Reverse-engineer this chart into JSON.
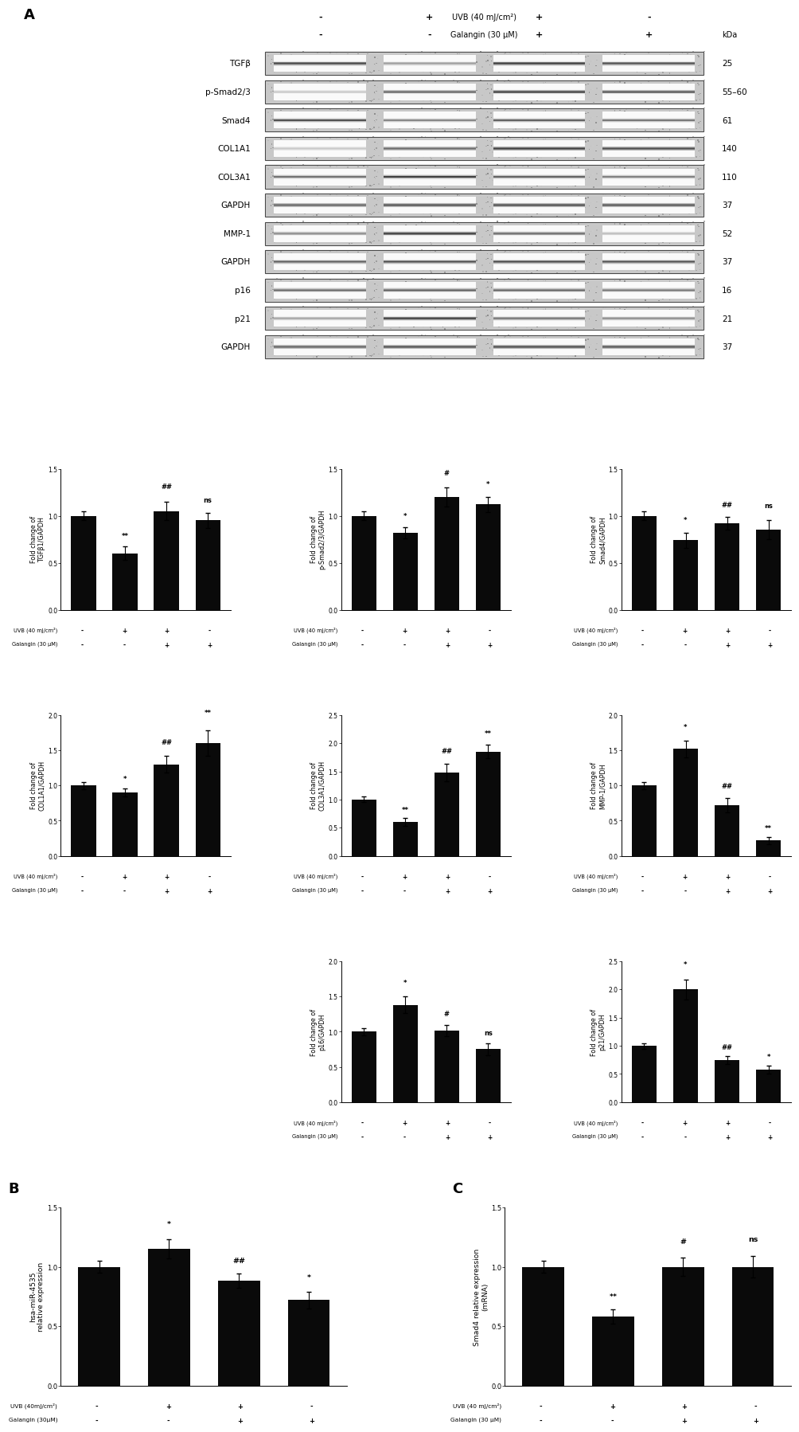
{
  "panel_A_label": "A",
  "panel_B_label": "B",
  "panel_C_label": "C",
  "uvb_label": "UVB (40 mJ/cm²)",
  "galangin_label": "Galangin (30 μM)",
  "uvb_label_short": "UVB (40mJ/cm²)",
  "galangin_label_short": "Galangin (30μM)",
  "uvb_label_space": "UVB (40 mJ/cm²)",
  "galangin_label_space": "Galangin (30 μM)",
  "conditions": [
    "-",
    "+",
    "+",
    "-"
  ],
  "galangin_conds": [
    "-",
    "-",
    "+",
    "+"
  ],
  "blot_info": [
    {
      "pattern": "TGFb",
      "label": "TGFβ",
      "kda": "25",
      "intensities": [
        0.85,
        0.45,
        0.9,
        0.8
      ]
    },
    {
      "pattern": "pSmad",
      "label": "p-Smad2/3",
      "kda": "55–60",
      "intensities": [
        0.25,
        0.7,
        0.88,
        0.78
      ]
    },
    {
      "pattern": "Smad4",
      "label": "Smad4",
      "kda": "61",
      "intensities": [
        0.8,
        0.55,
        0.72,
        0.62
      ]
    },
    {
      "pattern": "COL1A1",
      "label": "COL1A1",
      "kda": "140",
      "intensities": [
        0.25,
        0.68,
        0.88,
        0.82
      ]
    },
    {
      "pattern": "COL3A1",
      "label": "COL3A1",
      "kda": "110",
      "intensities": [
        0.65,
        0.88,
        0.72,
        0.58
      ]
    },
    {
      "pattern": "GAPDH",
      "label": "GAPDH",
      "kda": "37",
      "intensities": [
        0.72,
        0.8,
        0.82,
        0.78
      ]
    },
    {
      "pattern": "MMP1",
      "label": "MMP-1",
      "kda": "52",
      "intensities": [
        0.48,
        0.82,
        0.62,
        0.28
      ]
    },
    {
      "pattern": "GAPDH",
      "label": "GAPDH",
      "kda": "37",
      "intensities": [
        0.72,
        0.8,
        0.82,
        0.78
      ]
    },
    {
      "pattern": "p16",
      "label": "p16",
      "kda": "16",
      "intensities": [
        0.68,
        0.72,
        0.7,
        0.62
      ]
    },
    {
      "pattern": "p21",
      "label": "p21",
      "kda": "21",
      "intensities": [
        0.38,
        0.82,
        0.58,
        0.48
      ]
    },
    {
      "pattern": "GAPDH",
      "label": "GAPDH",
      "kda": "37",
      "intensities": [
        0.72,
        0.8,
        0.82,
        0.78
      ]
    }
  ],
  "bar_charts": {
    "TGFb": {
      "ylabel": "Fold change of\nTGFβ1/GAPDH",
      "ylim": [
        0,
        1.5
      ],
      "yticks": [
        0.0,
        0.5,
        1.0,
        1.5
      ],
      "values": [
        1.0,
        0.6,
        1.05,
        0.95
      ],
      "errors": [
        0.05,
        0.07,
        0.1,
        0.08
      ],
      "sig_labels": [
        "",
        "**",
        "##",
        "ns"
      ],
      "sig_offsets": [
        0.08,
        0.08,
        0.12,
        0.1
      ]
    },
    "pSmad23": {
      "ylabel": "Fold change of\np-Smad2/3/GAPDH",
      "ylim": [
        0,
        1.5
      ],
      "yticks": [
        0.0,
        0.5,
        1.0,
        1.5
      ],
      "values": [
        1.0,
        0.82,
        1.2,
        1.12
      ],
      "errors": [
        0.05,
        0.06,
        0.1,
        0.08
      ],
      "sig_labels": [
        "",
        "*",
        "#",
        "*"
      ],
      "sig_offsets": [
        0.07,
        0.08,
        0.12,
        0.1
      ]
    },
    "Smad4": {
      "ylabel": "Fold change of\nSmad4/GAPDH",
      "ylim": [
        0,
        1.5
      ],
      "yticks": [
        0.0,
        0.5,
        1.0,
        1.5
      ],
      "values": [
        1.0,
        0.74,
        0.92,
        0.85
      ],
      "errors": [
        0.05,
        0.08,
        0.07,
        0.1
      ],
      "sig_labels": [
        "",
        "*",
        "##",
        "ns"
      ],
      "sig_offsets": [
        0.07,
        0.1,
        0.09,
        0.12
      ]
    },
    "COL1A1": {
      "ylabel": "Fold change of\nCOL1A1/GAPDH",
      "ylim": [
        0,
        2.0
      ],
      "yticks": [
        0.0,
        0.5,
        1.0,
        1.5,
        2.0
      ],
      "values": [
        1.0,
        0.9,
        1.3,
        1.6
      ],
      "errors": [
        0.05,
        0.06,
        0.12,
        0.18
      ],
      "sig_labels": [
        "",
        "*",
        "##",
        "**"
      ],
      "sig_offsets": [
        0.07,
        0.08,
        0.14,
        0.2
      ]
    },
    "COL3A1": {
      "ylabel": "Fold change of\nCOL3A1/GAPDH",
      "ylim": [
        0,
        2.5
      ],
      "yticks": [
        0.0,
        0.5,
        1.0,
        1.5,
        2.0,
        2.5
      ],
      "values": [
        1.0,
        0.6,
        1.48,
        1.85
      ],
      "errors": [
        0.05,
        0.07,
        0.15,
        0.12
      ],
      "sig_labels": [
        "",
        "**",
        "##",
        "**"
      ],
      "sig_offsets": [
        0.07,
        0.09,
        0.17,
        0.14
      ]
    },
    "MMP1": {
      "ylabel": "Fold change of\nMMP-1/GAPDH",
      "ylim": [
        0,
        2.0
      ],
      "yticks": [
        0.0,
        0.5,
        1.0,
        1.5,
        2.0
      ],
      "values": [
        1.0,
        1.52,
        0.72,
        0.22
      ],
      "errors": [
        0.05,
        0.12,
        0.1,
        0.05
      ],
      "sig_labels": [
        "",
        "*",
        "##",
        "**"
      ],
      "sig_offsets": [
        0.07,
        0.14,
        0.12,
        0.07
      ]
    },
    "p16": {
      "ylabel": "Fold change of\np16/GAPDH",
      "ylim": [
        0,
        2.0
      ],
      "yticks": [
        0.0,
        0.5,
        1.0,
        1.5,
        2.0
      ],
      "values": [
        1.0,
        1.38,
        1.02,
        0.75
      ],
      "errors": [
        0.05,
        0.12,
        0.08,
        0.08
      ],
      "sig_labels": [
        "",
        "*",
        "#",
        "ns"
      ],
      "sig_offsets": [
        0.07,
        0.14,
        0.1,
        0.1
      ]
    },
    "p21": {
      "ylabel": "Fold change of\np21/GAPDH",
      "ylim": [
        0,
        2.5
      ],
      "yticks": [
        0.0,
        0.5,
        1.0,
        1.5,
        2.0,
        2.5
      ],
      "values": [
        1.0,
        2.0,
        0.75,
        0.58
      ],
      "errors": [
        0.05,
        0.18,
        0.07,
        0.07
      ],
      "sig_labels": [
        "",
        "*",
        "##",
        "*"
      ],
      "sig_offsets": [
        0.07,
        0.2,
        0.09,
        0.09
      ]
    }
  },
  "panel_B": {
    "ylabel": "hsa-miR-4535\nrelative expression",
    "ylim": [
      0,
      1.5
    ],
    "yticks": [
      0.0,
      0.5,
      1.0,
      1.5
    ],
    "values": [
      1.0,
      1.15,
      0.88,
      0.72
    ],
    "errors": [
      0.05,
      0.08,
      0.06,
      0.07
    ],
    "sig_labels": [
      "",
      "*",
      "##",
      "*"
    ],
    "sig_offsets": [
      0.07,
      0.1,
      0.08,
      0.09
    ]
  },
  "panel_C": {
    "ylabel": "Smad4 relative expression\n(mRNA)",
    "ylim": [
      0,
      1.5
    ],
    "yticks": [
      0.0,
      0.5,
      1.0,
      1.5
    ],
    "values": [
      1.0,
      0.58,
      1.0,
      1.0
    ],
    "errors": [
      0.05,
      0.06,
      0.08,
      0.09
    ],
    "sig_labels": [
      "",
      "**",
      "#",
      "ns"
    ],
    "sig_offsets": [
      0.07,
      0.08,
      0.1,
      0.11
    ]
  },
  "bar_color": "#0a0a0a",
  "bg_color": "#ffffff",
  "fs_panel": 13,
  "fs_blot_label": 7.5,
  "fs_kda": 7.5,
  "fs_header": 7.0,
  "fs_bar_ylabel": 5.8,
  "fs_bar_tick": 5.5,
  "fs_bar_sig": 6.0,
  "fs_cond_label": 4.8,
  "fs_cond_sym": 5.5
}
